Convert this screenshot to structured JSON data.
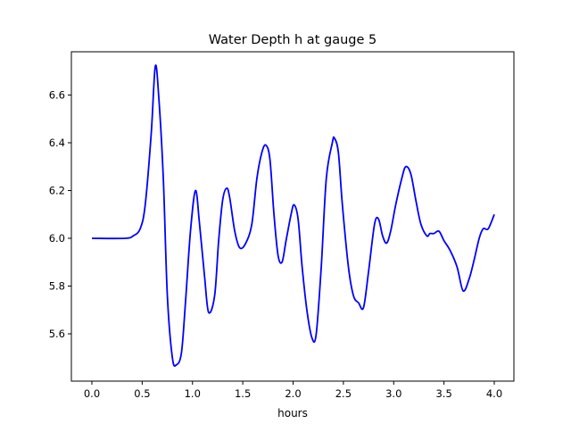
{
  "chart_data": {
    "type": "line",
    "title": "Water Depth h at gauge 5",
    "xlabel": "hours",
    "ylabel": "",
    "xlim": [
      -0.204,
      4.195
    ],
    "ylim": [
      5.402,
      6.781
    ],
    "xticks": [
      0.0,
      0.5,
      1.0,
      1.5,
      2.0,
      2.5,
      3.0,
      3.5,
      4.0
    ],
    "xtick_labels": [
      "0.0",
      "0.5",
      "1.0",
      "1.5",
      "2.0",
      "2.5",
      "3.0",
      "3.5",
      "4.0"
    ],
    "yticks": [
      5.6,
      5.8,
      6.0,
      6.2,
      6.4,
      6.6
    ],
    "ytick_labels": [
      "5.6",
      "5.8",
      "6.0",
      "6.2",
      "6.4",
      "6.6"
    ],
    "grid": false,
    "series": [
      {
        "name": "h",
        "color": "#0000ff",
        "x": [
          0.0,
          0.33,
          0.41,
          0.48,
          0.53,
          0.59,
          0.63,
          0.665,
          0.71,
          0.75,
          0.8,
          0.84,
          0.89,
          0.93,
          0.98,
          1.03,
          1.07,
          1.12,
          1.16,
          1.22,
          1.26,
          1.3,
          1.34,
          1.37,
          1.42,
          1.47,
          1.53,
          1.59,
          1.64,
          1.69,
          1.73,
          1.77,
          1.81,
          1.85,
          1.89,
          1.93,
          1.98,
          2.01,
          2.05,
          2.09,
          2.14,
          2.19,
          2.23,
          2.28,
          2.33,
          2.39,
          2.41,
          2.45,
          2.49,
          2.55,
          2.6,
          2.65,
          2.7,
          2.75,
          2.81,
          2.85,
          2.89,
          2.93,
          2.97,
          3.02,
          3.08,
          3.12,
          3.17,
          3.22,
          3.27,
          3.33,
          3.36,
          3.4,
          3.45,
          3.5,
          3.56,
          3.63,
          3.69,
          3.75,
          3.8,
          3.85,
          3.89,
          3.94,
          4.0
        ],
        "y": [
          6.0,
          6.0,
          6.01,
          6.04,
          6.14,
          6.44,
          6.72,
          6.59,
          6.25,
          5.76,
          5.5,
          5.47,
          5.52,
          5.73,
          6.03,
          6.2,
          6.06,
          5.84,
          5.69,
          5.76,
          5.99,
          6.16,
          6.21,
          6.17,
          6.03,
          5.96,
          5.98,
          6.06,
          6.25,
          6.36,
          6.39,
          6.33,
          6.1,
          5.93,
          5.9,
          5.99,
          6.1,
          6.14,
          6.08,
          5.88,
          5.69,
          5.58,
          5.6,
          5.88,
          6.25,
          6.4,
          6.42,
          6.36,
          6.14,
          5.88,
          5.76,
          5.73,
          5.71,
          5.86,
          6.06,
          6.08,
          6.01,
          5.98,
          6.03,
          6.14,
          6.25,
          6.3,
          6.27,
          6.16,
          6.06,
          6.01,
          6.02,
          6.02,
          6.03,
          5.99,
          5.95,
          5.88,
          5.78,
          5.83,
          5.91,
          6.0,
          6.04,
          6.04,
          6.1
        ]
      }
    ]
  }
}
